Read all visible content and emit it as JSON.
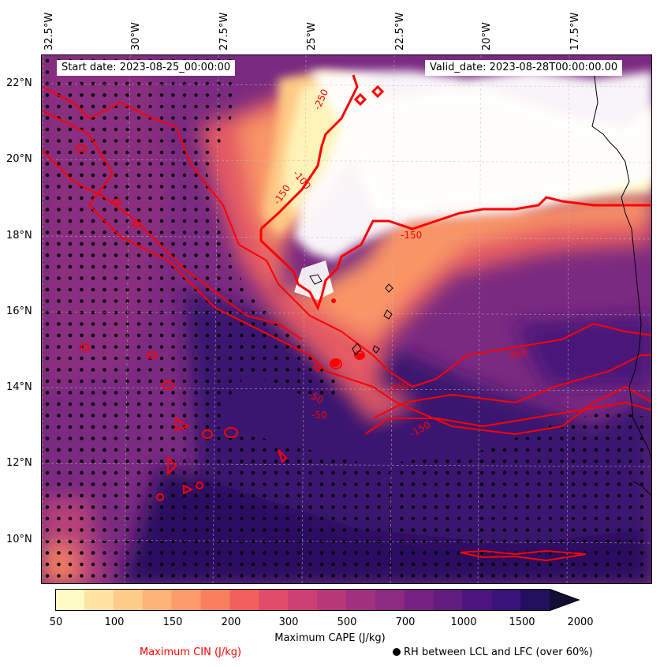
{
  "map": {
    "region": "Eastern tropical Atlantic / West Africa coast",
    "longitude_labels": [
      "32.5°W",
      "30°W",
      "27.5°W",
      "25°W",
      "22.5°W",
      "20°W",
      "17.5°W"
    ],
    "latitude_labels": [
      "22°N",
      "20°N",
      "18°N",
      "16°N",
      "14°N",
      "12°N",
      "10°N"
    ],
    "start_date": "Start date: 2023-08-25_00:00:00",
    "valid_date": "Valid_date: 2023-08-28T00:00:00.00",
    "cin_contour_labels": [
      "-250",
      "-150",
      "-250",
      "-150",
      "-250",
      "-150",
      "-50",
      "-50",
      "-100"
    ],
    "colors": {
      "cin_contour": "#ff0000",
      "coast": "#000000",
      "rh_dot": "#000000"
    }
  },
  "colorbar": {
    "levels": [
      "50",
      "100",
      "150",
      "200",
      "300",
      "500",
      "700",
      "1000",
      "1500",
      "2000"
    ],
    "label": "Maximum CAPE (J/kg)",
    "colors": [
      "#fffac6",
      "#fee3a2",
      "#fecb88",
      "#feb378",
      "#fd9b6b",
      "#fa7f5e",
      "#f1605d",
      "#e04c67",
      "#cc3f72",
      "#b73779",
      "#a1307e",
      "#8c2981",
      "#762181",
      "#621b80",
      "#4c137f",
      "#38137a",
      "#220f5e",
      "#120d31"
    ],
    "extend": "max"
  },
  "legend": {
    "cin": "Maximum CIN (J/kg)",
    "rh": "RH between LCL and LFC (over 60%)"
  }
}
